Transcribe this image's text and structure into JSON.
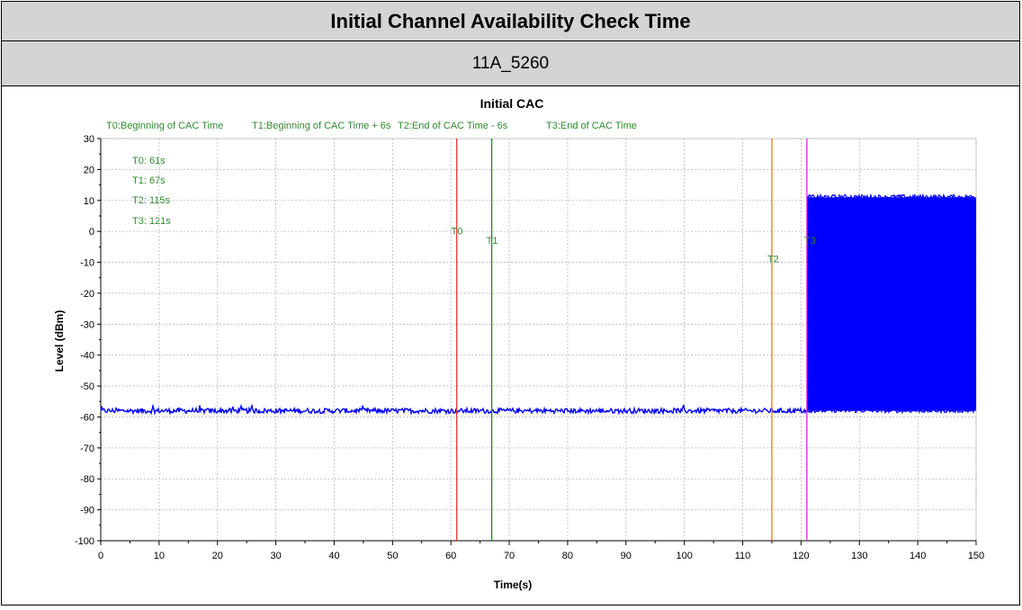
{
  "header": {
    "title": "Initial Channel Availability Check Time",
    "subtitle": "11A_5260"
  },
  "chart_data": {
    "type": "line",
    "title": "Initial CAC",
    "xlabel": "Time(s)",
    "ylabel": "Level (dBm)",
    "xlim": [
      0,
      150
    ],
    "ylim": [
      -100,
      30
    ],
    "x_ticks": [
      0,
      10,
      20,
      30,
      40,
      50,
      60,
      70,
      80,
      90,
      100,
      110,
      120,
      130,
      140,
      150
    ],
    "y_ticks": [
      30,
      20,
      10,
      0,
      -10,
      -20,
      -30,
      -40,
      -50,
      -60,
      -70,
      -80,
      -90,
      -100
    ],
    "grid": true,
    "legend": [
      "T0:Beginning of CAC Time",
      "T1:Beginning of CAC Time + 6s",
      "T2:End of CAC Time - 6s",
      "T3:End of CAC Time"
    ],
    "annotations": [
      "T0: 61s",
      "T1: 67s",
      "T2: 115s",
      "T3: 121s"
    ],
    "markers": [
      {
        "label": "T0",
        "x": 61,
        "color": "#e8352f",
        "label_y": -1
      },
      {
        "label": "T1",
        "x": 67,
        "color": "#1f8a1f",
        "label_y": -4
      },
      {
        "label": "T2",
        "x": 115,
        "color": "#e07a1e",
        "label_y": -10
      },
      {
        "label": "T3",
        "x": 121,
        "color": "#e020e0",
        "label_y": -4
      }
    ],
    "series": [
      {
        "color": "#0000ff",
        "noise_floor": {
          "x": [
            0,
            121
          ],
          "y": -58
        },
        "burst": {
          "x": [
            121,
            150
          ],
          "y_min": -58,
          "y_max": 11
        }
      }
    ]
  }
}
